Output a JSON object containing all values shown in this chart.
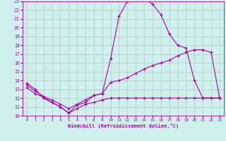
{
  "xlabel": "Windchill (Refroidissement éolien,°C)",
  "xlim": [
    -0.5,
    23.5
  ],
  "ylim": [
    10,
    23
  ],
  "xticks": [
    0,
    1,
    2,
    3,
    4,
    5,
    6,
    7,
    8,
    9,
    10,
    11,
    12,
    13,
    14,
    15,
    16,
    17,
    18,
    19,
    20,
    21,
    22,
    23
  ],
  "yticks": [
    10,
    11,
    12,
    13,
    14,
    15,
    16,
    17,
    18,
    19,
    20,
    21,
    22,
    23
  ],
  "bg_color": "#cff0ec",
  "line_color": "#aa00aa",
  "grid_color": "#b0c8c8",
  "line1_x": [
    0,
    1,
    2,
    3,
    4,
    5,
    6,
    7,
    8,
    9,
    10,
    11,
    12,
    13,
    14,
    15,
    16,
    17,
    18,
    19,
    20,
    21,
    22,
    23
  ],
  "line1_y": [
    13.7,
    13.0,
    12.0,
    11.5,
    11.0,
    10.3,
    11.2,
    11.5,
    12.3,
    12.5,
    16.5,
    21.3,
    23.0,
    23.3,
    23.3,
    22.7,
    21.5,
    19.3,
    18.0,
    17.7,
    14.0,
    12.0,
    12.0,
    12.0
  ],
  "line2_x": [
    0,
    1,
    2,
    3,
    4,
    5,
    6,
    7,
    8,
    9,
    10,
    11,
    12,
    13,
    14,
    15,
    16,
    17,
    18,
    19,
    20,
    21,
    22,
    23
  ],
  "line2_y": [
    13.2,
    12.5,
    12.1,
    11.8,
    11.3,
    10.8,
    11.3,
    11.8,
    12.3,
    12.5,
    13.8,
    14.0,
    14.3,
    14.8,
    15.3,
    15.7,
    16.0,
    16.3,
    16.8,
    17.2,
    17.5,
    17.5,
    17.2,
    12.0
  ],
  "line3_x": [
    0,
    1,
    2,
    3,
    4,
    5,
    6,
    7,
    8,
    9,
    10,
    11,
    12,
    13,
    14,
    15,
    16,
    17,
    18,
    19,
    20,
    21,
    22,
    23
  ],
  "line3_y": [
    13.5,
    12.8,
    12.2,
    11.5,
    11.0,
    10.3,
    10.8,
    11.3,
    11.5,
    11.8,
    12.0,
    12.0,
    12.0,
    12.0,
    12.0,
    12.0,
    12.0,
    12.0,
    12.0,
    12.0,
    12.0,
    12.0,
    12.0,
    12.0
  ]
}
